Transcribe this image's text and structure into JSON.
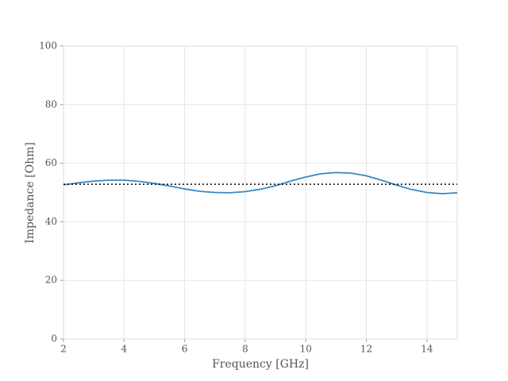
{
  "chart_data": {
    "type": "line",
    "xlabel": "Frequency [GHz]",
    "ylabel": "Impedance [Ohm]",
    "x": [
      2,
      2.5,
      3,
      3.5,
      4,
      4.5,
      5,
      5.5,
      6,
      6.5,
      7,
      7.5,
      8,
      8.5,
      9,
      9.5,
      10,
      10.5,
      11,
      11.5,
      12,
      12.5,
      13,
      13.5,
      14,
      14.5,
      15
    ],
    "series": [
      {
        "color": "#3a87c0",
        "values": [
          52.6,
          53.3,
          53.9,
          54.2,
          54.2,
          53.8,
          53.1,
          52.2,
          51.2,
          50.4,
          50.0,
          49.9,
          50.3,
          51.1,
          52.3,
          53.9,
          55.3,
          56.4,
          56.8,
          56.6,
          55.7,
          54.2,
          52.5,
          51.0,
          50.0,
          49.6,
          49.9
        ]
      }
    ],
    "hline": {
      "value": 52.8,
      "color": "#000000",
      "style": "dotted"
    },
    "xlim": [
      2,
      15
    ],
    "xticks": [
      2,
      4,
      6,
      8,
      10,
      12,
      14
    ],
    "ylim": [
      0,
      100
    ],
    "yticks": [
      0,
      20,
      40,
      60,
      80,
      100
    ],
    "grid": true
  }
}
